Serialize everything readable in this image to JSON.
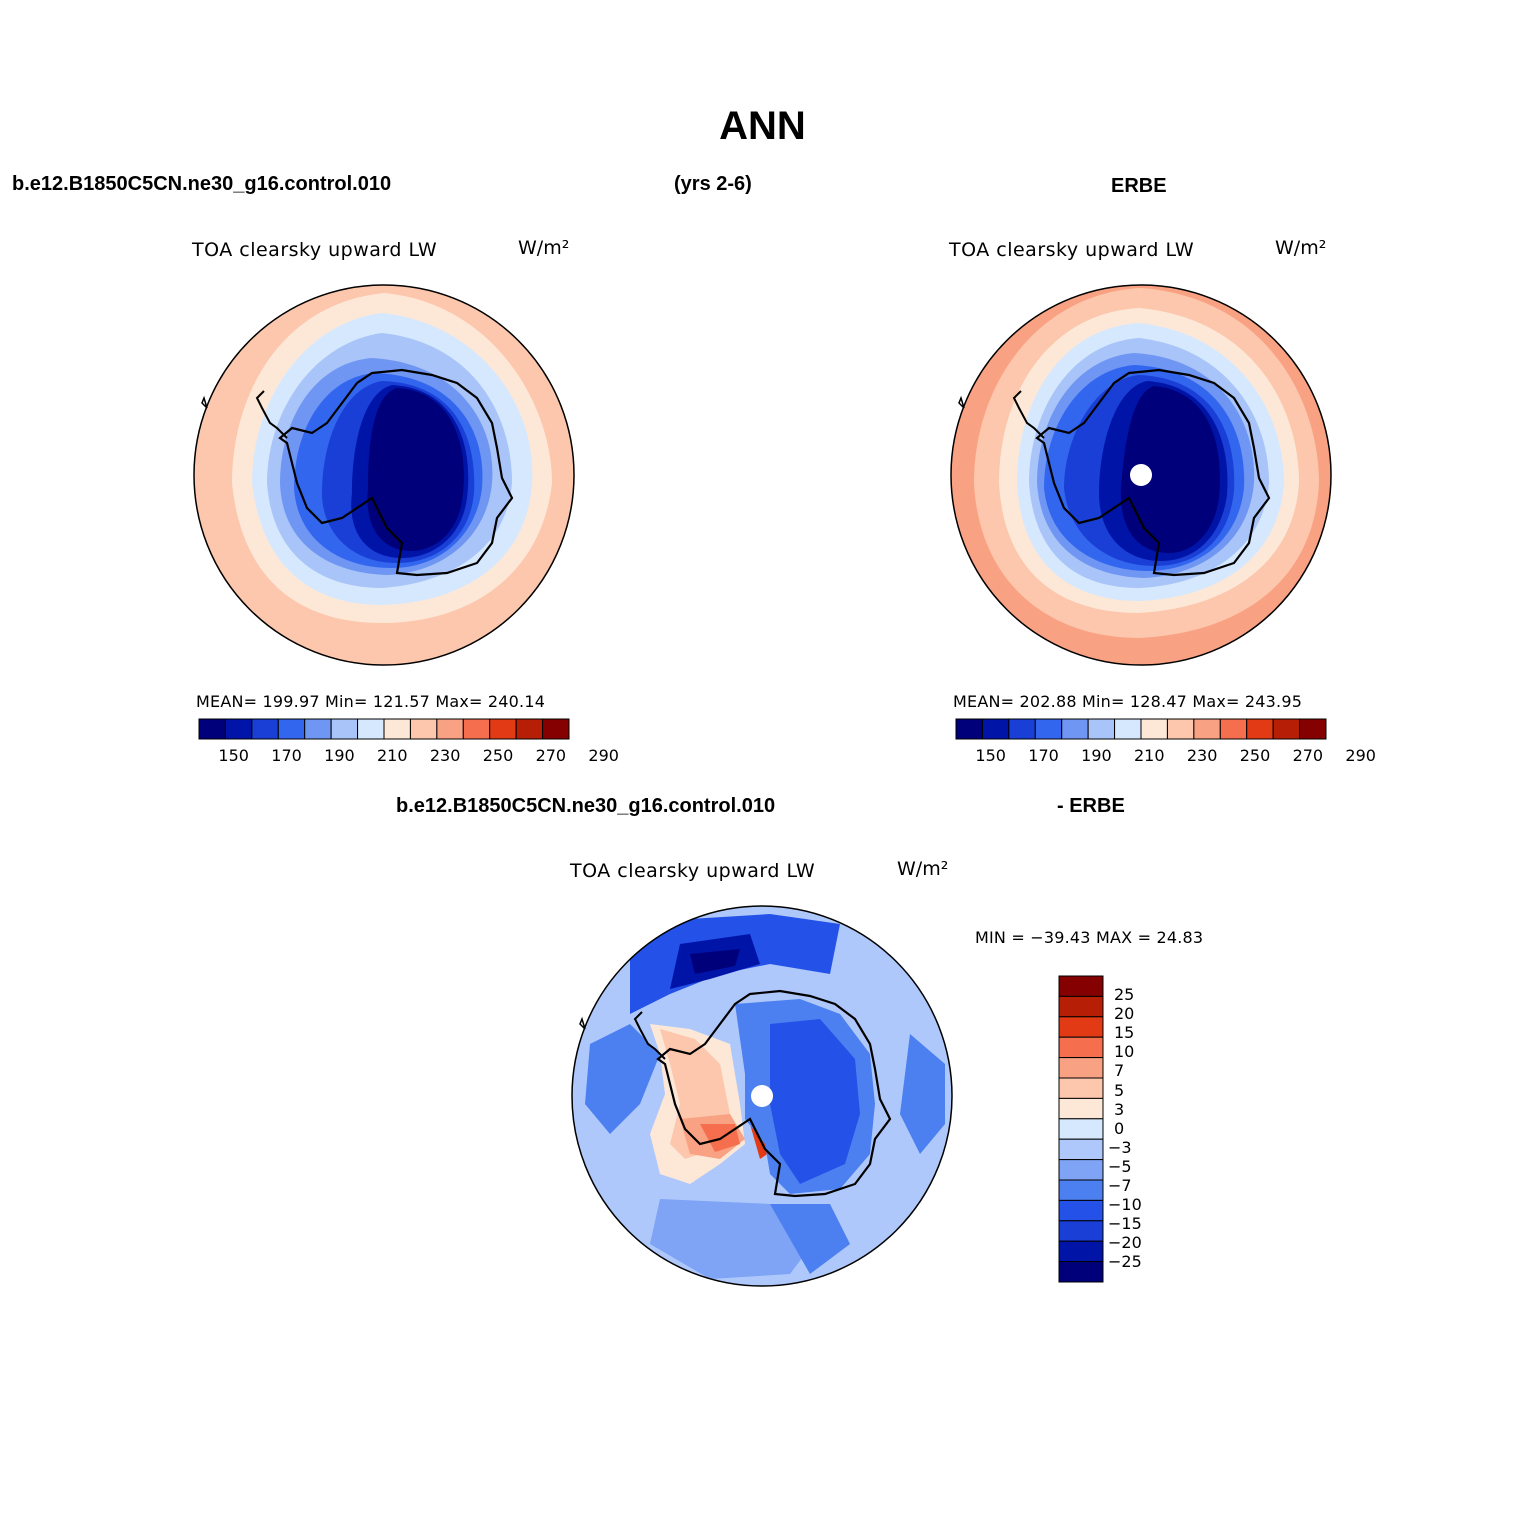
{
  "page": {
    "title": "ANN",
    "case_name": "b.e12.B1850C5CN.ne30_g16.control.010",
    "years": "(yrs 2-6)",
    "obs_name": "ERBE",
    "diff_case_name": "b.e12.B1850C5CN.ne30_g16.control.010",
    "diff_obs_name": "- ERBE"
  },
  "colors": {
    "abs_scale": [
      "#00007a",
      "#0014a8",
      "#1a3fd6",
      "#3366ee",
      "#6f96f2",
      "#a8c4f8",
      "#d6e8fd",
      "#fde8d8",
      "#fcc7ac",
      "#f9a283",
      "#f56e4e",
      "#e23a15",
      "#b61f06",
      "#850000"
    ],
    "diff_scale": [
      "#00007a",
      "#0014a8",
      "#1a3fd6",
      "#2452e8",
      "#4c7ff0",
      "#7fa3f5",
      "#aec8fb",
      "#d6e8fd",
      "#fde8d8",
      "#fcc7ac",
      "#f9a283",
      "#f56e4e",
      "#e23a15",
      "#b61f06",
      "#850000"
    ]
  },
  "chart_data": [
    {
      "type": "heatmap",
      "panel": "model",
      "title": "TOA clearsky upward LW",
      "units": "W/m²",
      "stats": {
        "mean": "199.97",
        "min": "121.57",
        "max": "240.14"
      },
      "stats_text": "MEAN=  199.97   Min=  121.57   Max=  240.14",
      "colorbar_labels": [
        "150",
        "170",
        "190",
        "210",
        "230",
        "250",
        "270",
        "290"
      ],
      "contour_levels": [
        140,
        150,
        160,
        170,
        180,
        190,
        200,
        210,
        220,
        230,
        240,
        250,
        260,
        270,
        280,
        290
      ],
      "projection": "south polar stereographic"
    },
    {
      "type": "heatmap",
      "panel": "obs",
      "title": "TOA clearsky upward LW",
      "units": "W/m²",
      "stats": {
        "mean": "202.88",
        "min": "128.47",
        "max": "243.95"
      },
      "stats_text": "MEAN=  202.88   Min=  128.47   Max=  243.95",
      "colorbar_labels": [
        "150",
        "170",
        "190",
        "210",
        "230",
        "250",
        "270",
        "290"
      ],
      "contour_levels": [
        140,
        150,
        160,
        170,
        180,
        190,
        200,
        210,
        220,
        230,
        240,
        250,
        260,
        270,
        280,
        290
      ],
      "projection": "south polar stereographic"
    },
    {
      "type": "heatmap",
      "panel": "difference",
      "title": "TOA clearsky upward LW",
      "units": "W/m²",
      "stats": {
        "min": "-39.43",
        "max": "24.83"
      },
      "stats_text": "MIN = −39.43 MAX =   24.83",
      "colorbar_labels": [
        "25",
        "20",
        "15",
        "10",
        "7",
        "5",
        "3",
        "0",
        "−3",
        "−5",
        "−7",
        "−10",
        "−15",
        "−20",
        "−25"
      ],
      "contour_levels": [
        -25,
        -20,
        -15,
        -10,
        -7,
        -5,
        -3,
        0,
        3,
        5,
        7,
        10,
        15,
        20,
        25
      ],
      "projection": "south polar stereographic"
    }
  ]
}
